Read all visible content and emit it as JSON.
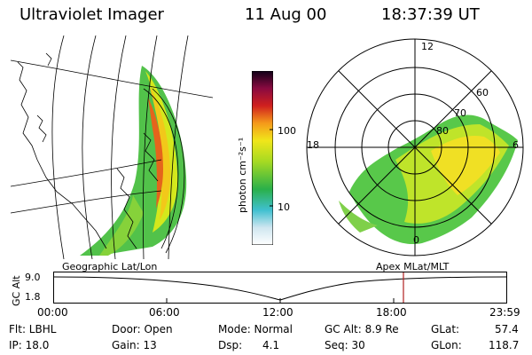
{
  "header": {
    "instrument": "Ultraviolet Imager",
    "date": "11 Aug 00",
    "time": "18:37:39 UT"
  },
  "colorbar": {
    "unit_label": "photon cm⁻²s⁻¹",
    "ticks": [
      "100",
      "10"
    ],
    "scale": "log"
  },
  "panels": {
    "geo_label": "Geographic Lat/Lon",
    "apex_label": "Apex MLat/MLT",
    "polar_mlt_labels": [
      "12",
      "18",
      "6",
      "0"
    ],
    "polar_mlat_labels": [
      "60",
      "70",
      "80"
    ]
  },
  "timeline": {
    "axis_label": "GC Alt",
    "y_ticks": [
      "9.0",
      "1.8"
    ],
    "x_ticks": [
      "00:00",
      "06:00",
      "12:00",
      "18:00",
      "23:59"
    ],
    "marker_color": "#b02020"
  },
  "info": {
    "flt": "Flt: LBHL",
    "ip": "IP: 18.0",
    "door": "Door: Open",
    "gain": "Gain: 13",
    "mode": "Mode: Normal",
    "dsp": "Dsp:      4.1",
    "gcalt": "GC Alt: 8.9 Re",
    "seq": "Seq: 30",
    "glat": "GLat:",
    "glat_val": "57.4",
    "glon": "GLon:",
    "glon_val": "118.7"
  }
}
